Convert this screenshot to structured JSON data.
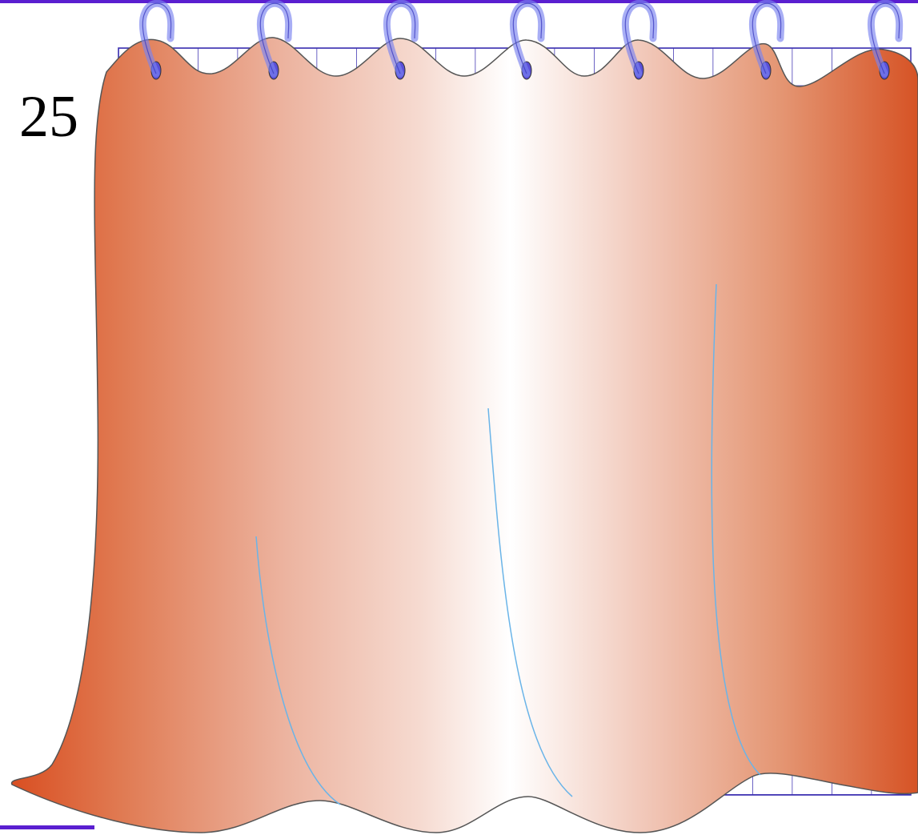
{
  "label": {
    "text": "25"
  }
}
